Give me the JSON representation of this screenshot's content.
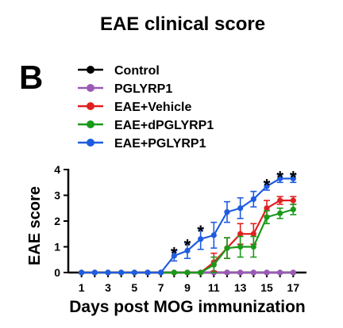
{
  "chart_data": {
    "type": "line",
    "title": "EAE clinical score",
    "panel_label": "B",
    "xlabel": "Days post MOG immunization",
    "ylabel": "EAE score",
    "xlim": [
      0,
      18
    ],
    "ylim": [
      0,
      4
    ],
    "x_ticks": [
      1,
      3,
      5,
      7,
      9,
      11,
      13,
      15,
      17
    ],
    "y_ticks": [
      0,
      1,
      2,
      3,
      4
    ],
    "legend_position": "top",
    "x": [
      1,
      2,
      3,
      4,
      5,
      6,
      7,
      8,
      9,
      10,
      11,
      12,
      13,
      14,
      15,
      16,
      17
    ],
    "series": [
      {
        "name": "Control",
        "color": "#000000",
        "values": [
          0,
          0,
          0,
          0,
          0,
          0,
          0,
          0,
          0,
          0,
          0,
          0,
          0,
          0,
          0,
          0,
          0
        ],
        "errors": [
          0,
          0,
          0,
          0,
          0,
          0,
          0,
          0,
          0,
          0,
          0,
          0,
          0,
          0,
          0,
          0,
          0
        ]
      },
      {
        "name": "PGLYRP1",
        "color": "#9b59b6",
        "values": [
          0,
          0,
          0,
          0,
          0,
          0,
          0,
          0,
          0,
          0,
          0,
          0,
          0,
          0,
          0,
          0,
          0
        ],
        "errors": [
          0,
          0,
          0,
          0,
          0,
          0,
          0,
          0,
          0,
          0,
          0,
          0,
          0,
          0,
          0,
          0,
          0
        ]
      },
      {
        "name": "EAE+Vehicle",
        "color": "#e02020",
        "values": [
          0,
          0,
          0,
          0,
          0,
          0,
          0,
          0,
          0,
          0,
          0.4,
          0.95,
          1.5,
          1.5,
          2.5,
          2.8,
          2.8
        ],
        "errors": [
          0,
          0,
          0,
          0,
          0,
          0,
          0,
          0,
          0,
          0,
          0.35,
          0.4,
          0.4,
          0.4,
          0.3,
          0.15,
          0.15
        ]
      },
      {
        "name": "EAE+dPGLYRP1",
        "color": "#1a9a1a",
        "values": [
          0,
          0,
          0,
          0,
          0,
          0,
          0,
          0,
          0,
          0,
          0.3,
          0.95,
          1.0,
          1.0,
          2.15,
          2.3,
          2.45
        ],
        "errors": [
          0,
          0,
          0,
          0,
          0,
          0,
          0,
          0,
          0,
          0,
          0.3,
          0.4,
          0.4,
          0.4,
          0.25,
          0.2,
          0.2
        ]
      },
      {
        "name": "EAE+PGLYRP1",
        "color": "#1f5ce0",
        "values": [
          0,
          0,
          0,
          0,
          0,
          0,
          0,
          0.65,
          0.85,
          1.3,
          1.45,
          2.35,
          2.5,
          2.85,
          3.35,
          3.65,
          3.65
        ],
        "errors": [
          0,
          0,
          0,
          0,
          0,
          0,
          0,
          0.2,
          0.3,
          0.4,
          0.5,
          0.4,
          0.4,
          0.3,
          0.15,
          0.15,
          0.15
        ]
      }
    ],
    "significance": [
      {
        "x": 8,
        "y": 0.85,
        "label": "*"
      },
      {
        "x": 9,
        "y": 1.15,
        "label": "*"
      },
      {
        "x": 10,
        "y": 1.7,
        "label": "*"
      },
      {
        "x": 15,
        "y": 3.5,
        "label": "*"
      },
      {
        "x": 16,
        "y": 3.8,
        "label": "*"
      },
      {
        "x": 17,
        "y": 3.8,
        "label": "*"
      }
    ]
  }
}
